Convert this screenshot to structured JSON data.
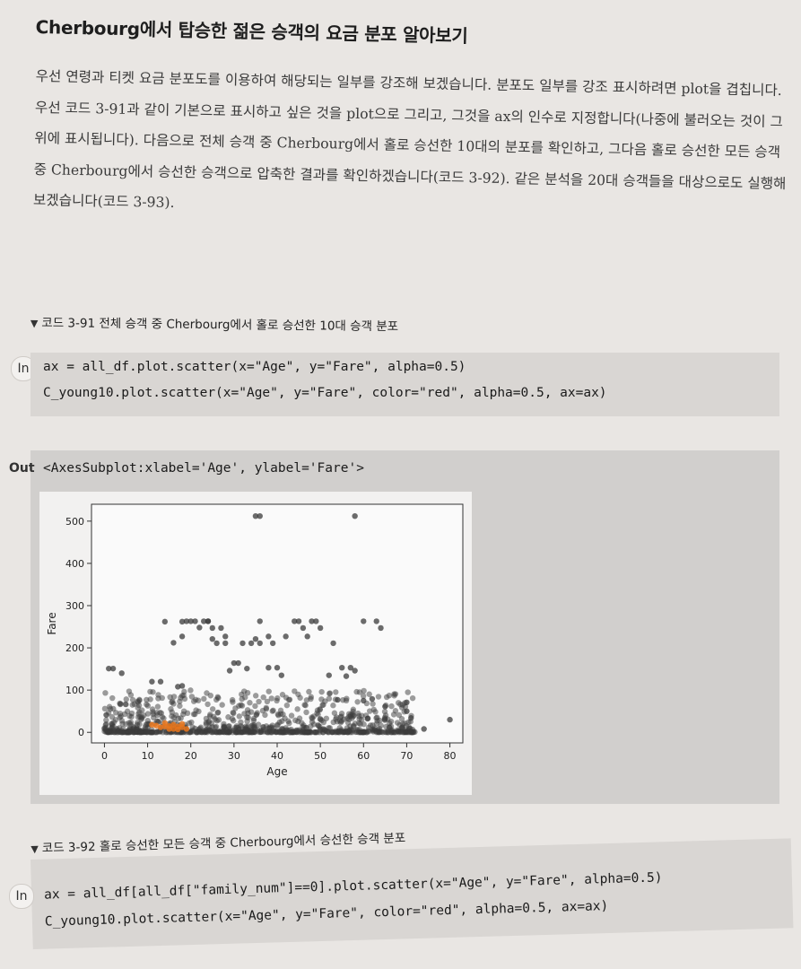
{
  "heading": "Cherbourg에서 탑승한 젊은 승객의 요금 분포 알아보기",
  "paragraph": "우선 연령과 티켓 요금 분포도를 이용하여 해당되는 일부를 강조해 보겠습니다. 분포도 일부를 강조 표시하려면 plot을 겹칩니다. 우선 코드 3-91과 같이 기본으로 표시하고 싶은 것을 plot으로 그리고, 그것을 ax의 인수로 지정합니다(나중에 불러오는 것이 그 위에 표시됩니다). 다음으로 전체 승객 중 Cherbourg에서 홀로 승선한 10대의 분포를 확인하고, 그다음 홀로 승선한 모든 승객 중 Cherbourg에서 승선한 승객으로 압축한 결과를 확인하겠습니다(코드 3-92). 같은 분석을 20대 승객들을 대상으로도 실행해 보겠습니다(코드 3-93).",
  "code1": {
    "caption": "코드 3-91 전체 승객 중 Cherbourg에서 홀로 승선한 10대 승객 분포",
    "in_label": "In",
    "lines": [
      "ax = all_df.plot.scatter(x=\"Age\", y=\"Fare\", alpha=0.5)",
      "C_young10.plot.scatter(x=\"Age\", y=\"Fare\", color=\"red\", alpha=0.5, ax=ax)"
    ]
  },
  "output": {
    "out_label": "Out",
    "text": "<AxesSubplot:xlabel='Age', ylabel='Fare'>"
  },
  "chart_data": {
    "type": "scatter",
    "xlabel": "Age",
    "ylabel": "Fare",
    "xlim": [
      -3,
      83
    ],
    "ylim": [
      -25,
      540
    ],
    "xticks": [
      0,
      10,
      20,
      30,
      40,
      50,
      60,
      70,
      80
    ],
    "yticks": [
      0,
      100,
      200,
      300,
      400,
      500
    ],
    "series": [
      {
        "color": "#3b3b3b",
        "points": [
          [
            35,
            512
          ],
          [
            36,
            512
          ],
          [
            58,
            512
          ],
          [
            1,
            151
          ],
          [
            2,
            151
          ],
          [
            4,
            140
          ],
          [
            11,
            120
          ],
          [
            13,
            120
          ],
          [
            14,
            262
          ],
          [
            16,
            212
          ],
          [
            17,
            108
          ],
          [
            18,
            262
          ],
          [
            18,
            227
          ],
          [
            18,
            110
          ],
          [
            19,
            263
          ],
          [
            20,
            263
          ],
          [
            21,
            263
          ],
          [
            22,
            248
          ],
          [
            23,
            263
          ],
          [
            24,
            263
          ],
          [
            24,
            263
          ],
          [
            25,
            247
          ],
          [
            25,
            221
          ],
          [
            26,
            211
          ],
          [
            27,
            247
          ],
          [
            28,
            227
          ],
          [
            28,
            211
          ],
          [
            29,
            146
          ],
          [
            30,
            164
          ],
          [
            31,
            164
          ],
          [
            32,
            211
          ],
          [
            33,
            151
          ],
          [
            34,
            211
          ],
          [
            35,
            221
          ],
          [
            36,
            263
          ],
          [
            36,
            211
          ],
          [
            38,
            227
          ],
          [
            38,
            153
          ],
          [
            39,
            211
          ],
          [
            40,
            153
          ],
          [
            41,
            135
          ],
          [
            42,
            227
          ],
          [
            44,
            263
          ],
          [
            45,
            263
          ],
          [
            46,
            247
          ],
          [
            47,
            227
          ],
          [
            48,
            263
          ],
          [
            49,
            263
          ],
          [
            50,
            247
          ],
          [
            52,
            135
          ],
          [
            53,
            211
          ],
          [
            54,
            77
          ],
          [
            55,
            153
          ],
          [
            56,
            133
          ],
          [
            57,
            153
          ],
          [
            58,
            146
          ],
          [
            60,
            263
          ],
          [
            62,
            79
          ],
          [
            63,
            263
          ],
          [
            64,
            247
          ],
          [
            65,
            61
          ],
          [
            70,
            71
          ],
          [
            71,
            34
          ],
          [
            74,
            8
          ],
          [
            80,
            30
          ],
          [
            70,
            50
          ],
          [
            66,
            12
          ],
          [
            61,
            33
          ],
          [
            60,
            75
          ]
        ],
        "cloud": {
          "density_note": "dense cluster",
          "age_range": [
            0,
            72
          ],
          "fare_range": [
            0,
            100
          ]
        }
      },
      {
        "color": "#e8761c",
        "points": [
          [
            11,
            18
          ],
          [
            12,
            16
          ],
          [
            13,
            12
          ],
          [
            14,
            14
          ],
          [
            14,
            22
          ],
          [
            15,
            8
          ],
          [
            15,
            15
          ],
          [
            16,
            18
          ],
          [
            16,
            8
          ],
          [
            17,
            14
          ],
          [
            17,
            7
          ],
          [
            18,
            20
          ],
          [
            18,
            12
          ],
          [
            19,
            8
          ]
        ]
      }
    ]
  },
  "code2": {
    "caption": "코드 3-92 홀로 승선한 모든 승객 중 Cherbourg에서 승선한 승객 분포",
    "in_label": "In",
    "lines": [
      "ax = all_df[all_df[\"family_num\"]==0].plot.scatter(x=\"Age\", y=\"Fare\", alpha=0.5)",
      "C_young10.plot.scatter(x=\"Age\", y=\"Fare\", color=\"red\", alpha=0.5, ax=ax)"
    ]
  }
}
